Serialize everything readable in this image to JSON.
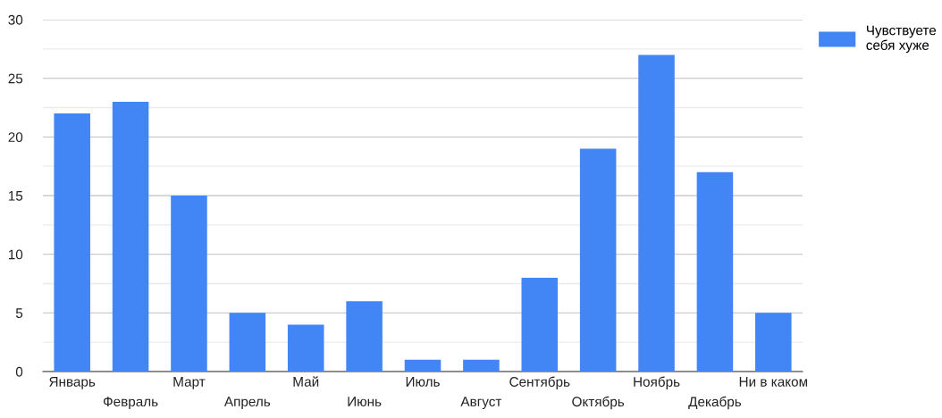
{
  "chart_data": {
    "type": "bar",
    "categories": [
      "Январь",
      "Февраль",
      "Март",
      "Апрель",
      "Май",
      "Июнь",
      "Июль",
      "Август",
      "Сентябрь",
      "Октябрь",
      "Ноябрь",
      "Декабрь",
      "Ни в каком"
    ],
    "series": [
      {
        "name": "Чувствуете себя хуже",
        "color": "#4285f4",
        "values": [
          22,
          23,
          15,
          5,
          4,
          6,
          1,
          1,
          8,
          19,
          27,
          17,
          5
        ]
      }
    ],
    "ylim": [
      0,
      30
    ],
    "yticks": [
      0,
      {
        "value": 2.5,
        "label": null
      },
      5,
      {
        "value": 7.5,
        "label": null
      },
      10,
      {
        "value": 12.5,
        "label": null
      },
      15,
      {
        "value": 17.5,
        "label": null
      },
      20,
      {
        "value": 22.5,
        "label": null
      },
      25,
      {
        "value": 27.5,
        "label": null
      },
      30
    ],
    "grid": "y",
    "legend": "top right"
  }
}
